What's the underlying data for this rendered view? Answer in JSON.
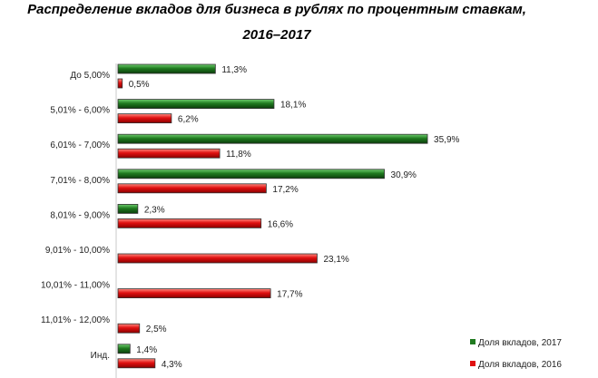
{
  "chart_data": {
    "type": "bar",
    "orientation": "horizontal",
    "title_line1": "Распределение вкладов для бизнеса в рублях по процентным ставкам,",
    "title_line2": "2016–2017",
    "categories": [
      "До 5,00%",
      "5,01% - 6,00%",
      "6,01% - 7,00%",
      "7,01% - 8,00%",
      "8,01% - 9,00%",
      "9,01% - 10,00%",
      "10,01% - 11,00%",
      "11,01% - 12,00%",
      "Инд."
    ],
    "series": [
      {
        "name": "Доля вкладов, 2017",
        "color": "#1f7a1f",
        "values": [
          11.3,
          18.1,
          35.9,
          30.9,
          2.3,
          null,
          null,
          null,
          1.4
        ],
        "labels": [
          "11,3%",
          "18,1%",
          "35,9%",
          "30,9%",
          "2,3%",
          "",
          "",
          "",
          "1,4%"
        ]
      },
      {
        "name": "Доля вкладов, 2016",
        "color": "#e01010",
        "values": [
          0.5,
          6.2,
          11.8,
          17.2,
          16.6,
          23.1,
          17.7,
          2.5,
          4.3
        ],
        "labels": [
          "0,5%",
          "6,2%",
          "11,8%",
          "17,2%",
          "16,6%",
          "23,1%",
          "17,7%",
          "2,5%",
          "4,3%"
        ]
      }
    ],
    "legend_position": "bottom-right",
    "grid": false
  }
}
